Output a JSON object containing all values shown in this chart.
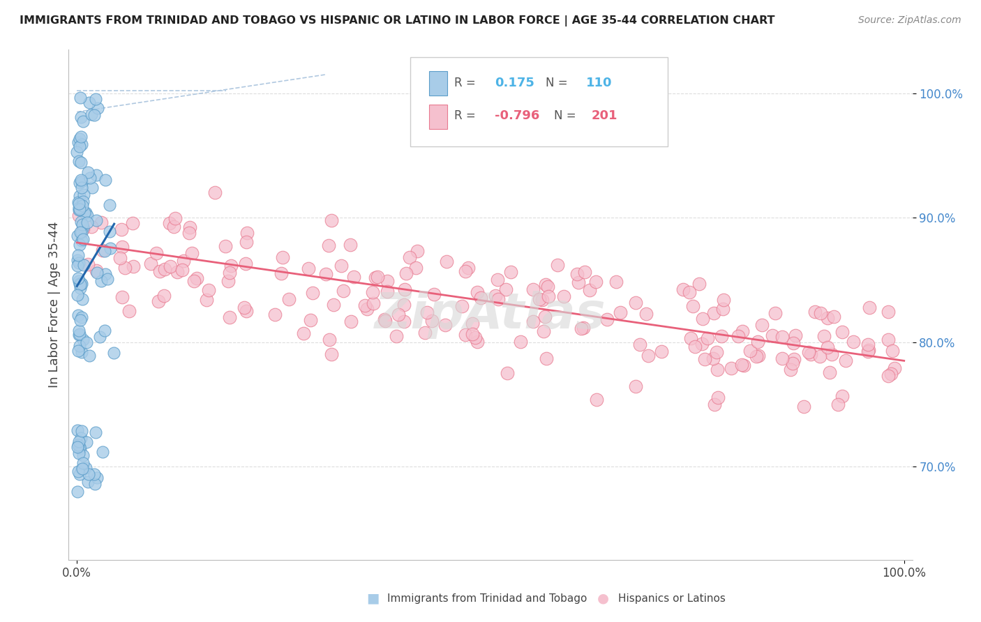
{
  "title": "IMMIGRANTS FROM TRINIDAD AND TOBAGO VS HISPANIC OR LATINO IN LABOR FORCE | AGE 35-44 CORRELATION CHART",
  "source": "Source: ZipAtlas.com",
  "ylabel": "In Labor Force | Age 35-44",
  "xlim": [
    -0.01,
    1.01
  ],
  "ylim": [
    0.625,
    1.035
  ],
  "yticks": [
    0.7,
    0.8,
    0.9,
    1.0
  ],
  "ytick_labels": [
    "70.0%",
    "80.0%",
    "90.0%",
    "100.0%"
  ],
  "xtick_labels": [
    "0.0%",
    "100.0%"
  ],
  "legend_blue_r": "0.175",
  "legend_blue_n": "110",
  "legend_pink_r": "-0.796",
  "legend_pink_n": "201",
  "blue_fill": "#a8cce8",
  "blue_edge": "#5b9dc9",
  "pink_fill": "#f5c0ce",
  "pink_edge": "#e87a90",
  "blue_line_color": "#2166ac",
  "pink_line_color": "#e8607a",
  "diagonal_color": "#b0c8e0",
  "watermark": "ZipAtlas",
  "legend_blue_r_color": "#4db3e6",
  "legend_pink_r_color": "#e8607a",
  "legend_n_color": "#4db3e6",
  "legend_pink_n_color": "#e8607a"
}
